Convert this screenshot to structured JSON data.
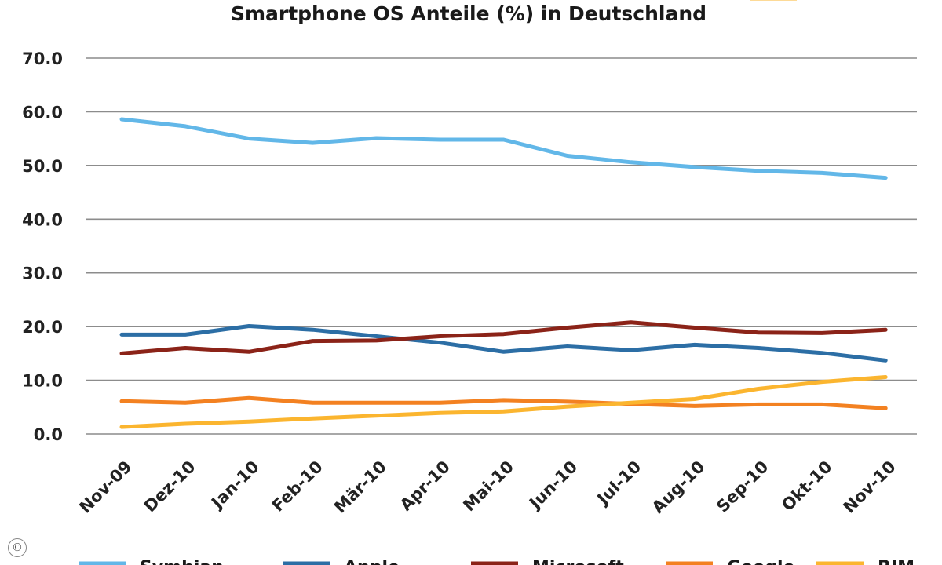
{
  "chart_data": {
    "type": "line",
    "title": "Smartphone OS Anteile (%) in Deutschland",
    "categories": [
      "Nov-09",
      "Dez-10",
      "Jan-10",
      "Feb-10",
      "Mär-10",
      "Apr-10",
      "Mai-10",
      "Jun-10",
      "Jul-10",
      "Aug-10",
      "Sep-10",
      "Okt-10",
      "Nov-10"
    ],
    "ylim": [
      0,
      70
    ],
    "yticks": [
      "0.0",
      "10.0",
      "20.0",
      "30.0",
      "40.0",
      "50.0",
      "60.0",
      "70.0"
    ],
    "grid": true,
    "legend_position": "bottom",
    "series": [
      {
        "name": "Symbian",
        "color": "#62b7e8",
        "values": [
          58.6,
          57.3,
          55.0,
          54.2,
          55.1,
          54.8,
          54.8,
          51.8,
          50.6,
          49.7,
          49.0,
          48.6,
          47.7
        ]
      },
      {
        "name": "Apple",
        "color": "#2c6ea5",
        "values": [
          18.5,
          18.5,
          20.1,
          19.4,
          18.2,
          17.0,
          15.3,
          16.3,
          15.6,
          16.6,
          16.0,
          15.1,
          13.7
        ]
      },
      {
        "name": "Microsoft",
        "color": "#8b2318",
        "values": [
          15.0,
          16.0,
          15.3,
          17.3,
          17.4,
          18.2,
          18.6,
          19.8,
          20.8,
          19.8,
          18.9,
          18.8,
          19.4
        ]
      },
      {
        "name": "Google",
        "color": "#f38121",
        "values": [
          6.1,
          5.8,
          6.7,
          5.8,
          5.8,
          5.8,
          6.3,
          6.0,
          5.6,
          5.2,
          5.5,
          5.5,
          4.8
        ]
      },
      {
        "name": "RIM",
        "color": "#fbb52f",
        "values": [
          1.3,
          1.9,
          2.3,
          2.9,
          3.4,
          3.9,
          4.2,
          5.1,
          5.8,
          6.5,
          8.4,
          9.7,
          10.6
        ]
      }
    ]
  },
  "legend_labels": [
    "Symbian",
    "Apple",
    "Microsoft",
    "Google",
    "RIM"
  ],
  "copyright_symbol": "©"
}
